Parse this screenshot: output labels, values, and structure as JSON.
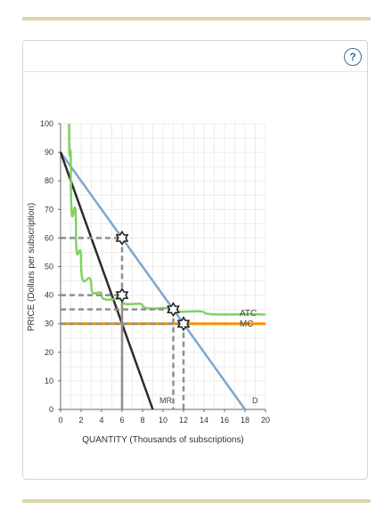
{
  "help": {
    "label": "?",
    "icon": "help-icon"
  },
  "chart_data": {
    "type": "line",
    "xlabel": "QUANTITY (Thousands of subscriptions)",
    "ylabel": "PRICE (Dollars per subscription)",
    "xlim": [
      0,
      20
    ],
    "ylim": [
      0,
      100
    ],
    "xticks": [
      0,
      2,
      4,
      6,
      8,
      10,
      12,
      14,
      16,
      18,
      20
    ],
    "yticks": [
      0,
      10,
      20,
      30,
      40,
      50,
      60,
      70,
      80,
      90,
      100
    ],
    "grid": true,
    "series": [
      {
        "name": "D",
        "color": "#7fa6cf",
        "points": [
          [
            0,
            90
          ],
          [
            18,
            0
          ]
        ]
      },
      {
        "name": "MR",
        "color": "#2b2b2b",
        "points": [
          [
            0,
            90
          ],
          [
            9,
            0
          ]
        ]
      },
      {
        "name": "MC",
        "color": "#f39200",
        "points": [
          [
            0,
            30
          ],
          [
            20,
            30
          ]
        ]
      },
      {
        "name": "ATC",
        "color": "#7fd35d",
        "curve": "atc",
        "points": [
          [
            0.83,
            100
          ],
          [
            1,
            86
          ],
          [
            1.5,
            63
          ],
          [
            2,
            52
          ],
          [
            3,
            43
          ],
          [
            4,
            40
          ],
          [
            6,
            38
          ],
          [
            8,
            36.5
          ],
          [
            11,
            35
          ],
          [
            14,
            34
          ],
          [
            20,
            33
          ]
        ]
      }
    ],
    "markers": [
      {
        "x": 6,
        "y": 60
      },
      {
        "x": 6,
        "y": 40
      },
      {
        "x": 11,
        "y": 35
      },
      {
        "x": 12,
        "y": 30
      }
    ],
    "guides": [
      {
        "x": 6,
        "y": 60
      },
      {
        "x": 6,
        "y": 40
      },
      {
        "x": 11,
        "y": 35
      },
      {
        "x": 12,
        "y": 30
      }
    ],
    "labels": {
      "atc": "ATC",
      "mc": "MC",
      "mr": "MR",
      "d": "D"
    }
  }
}
